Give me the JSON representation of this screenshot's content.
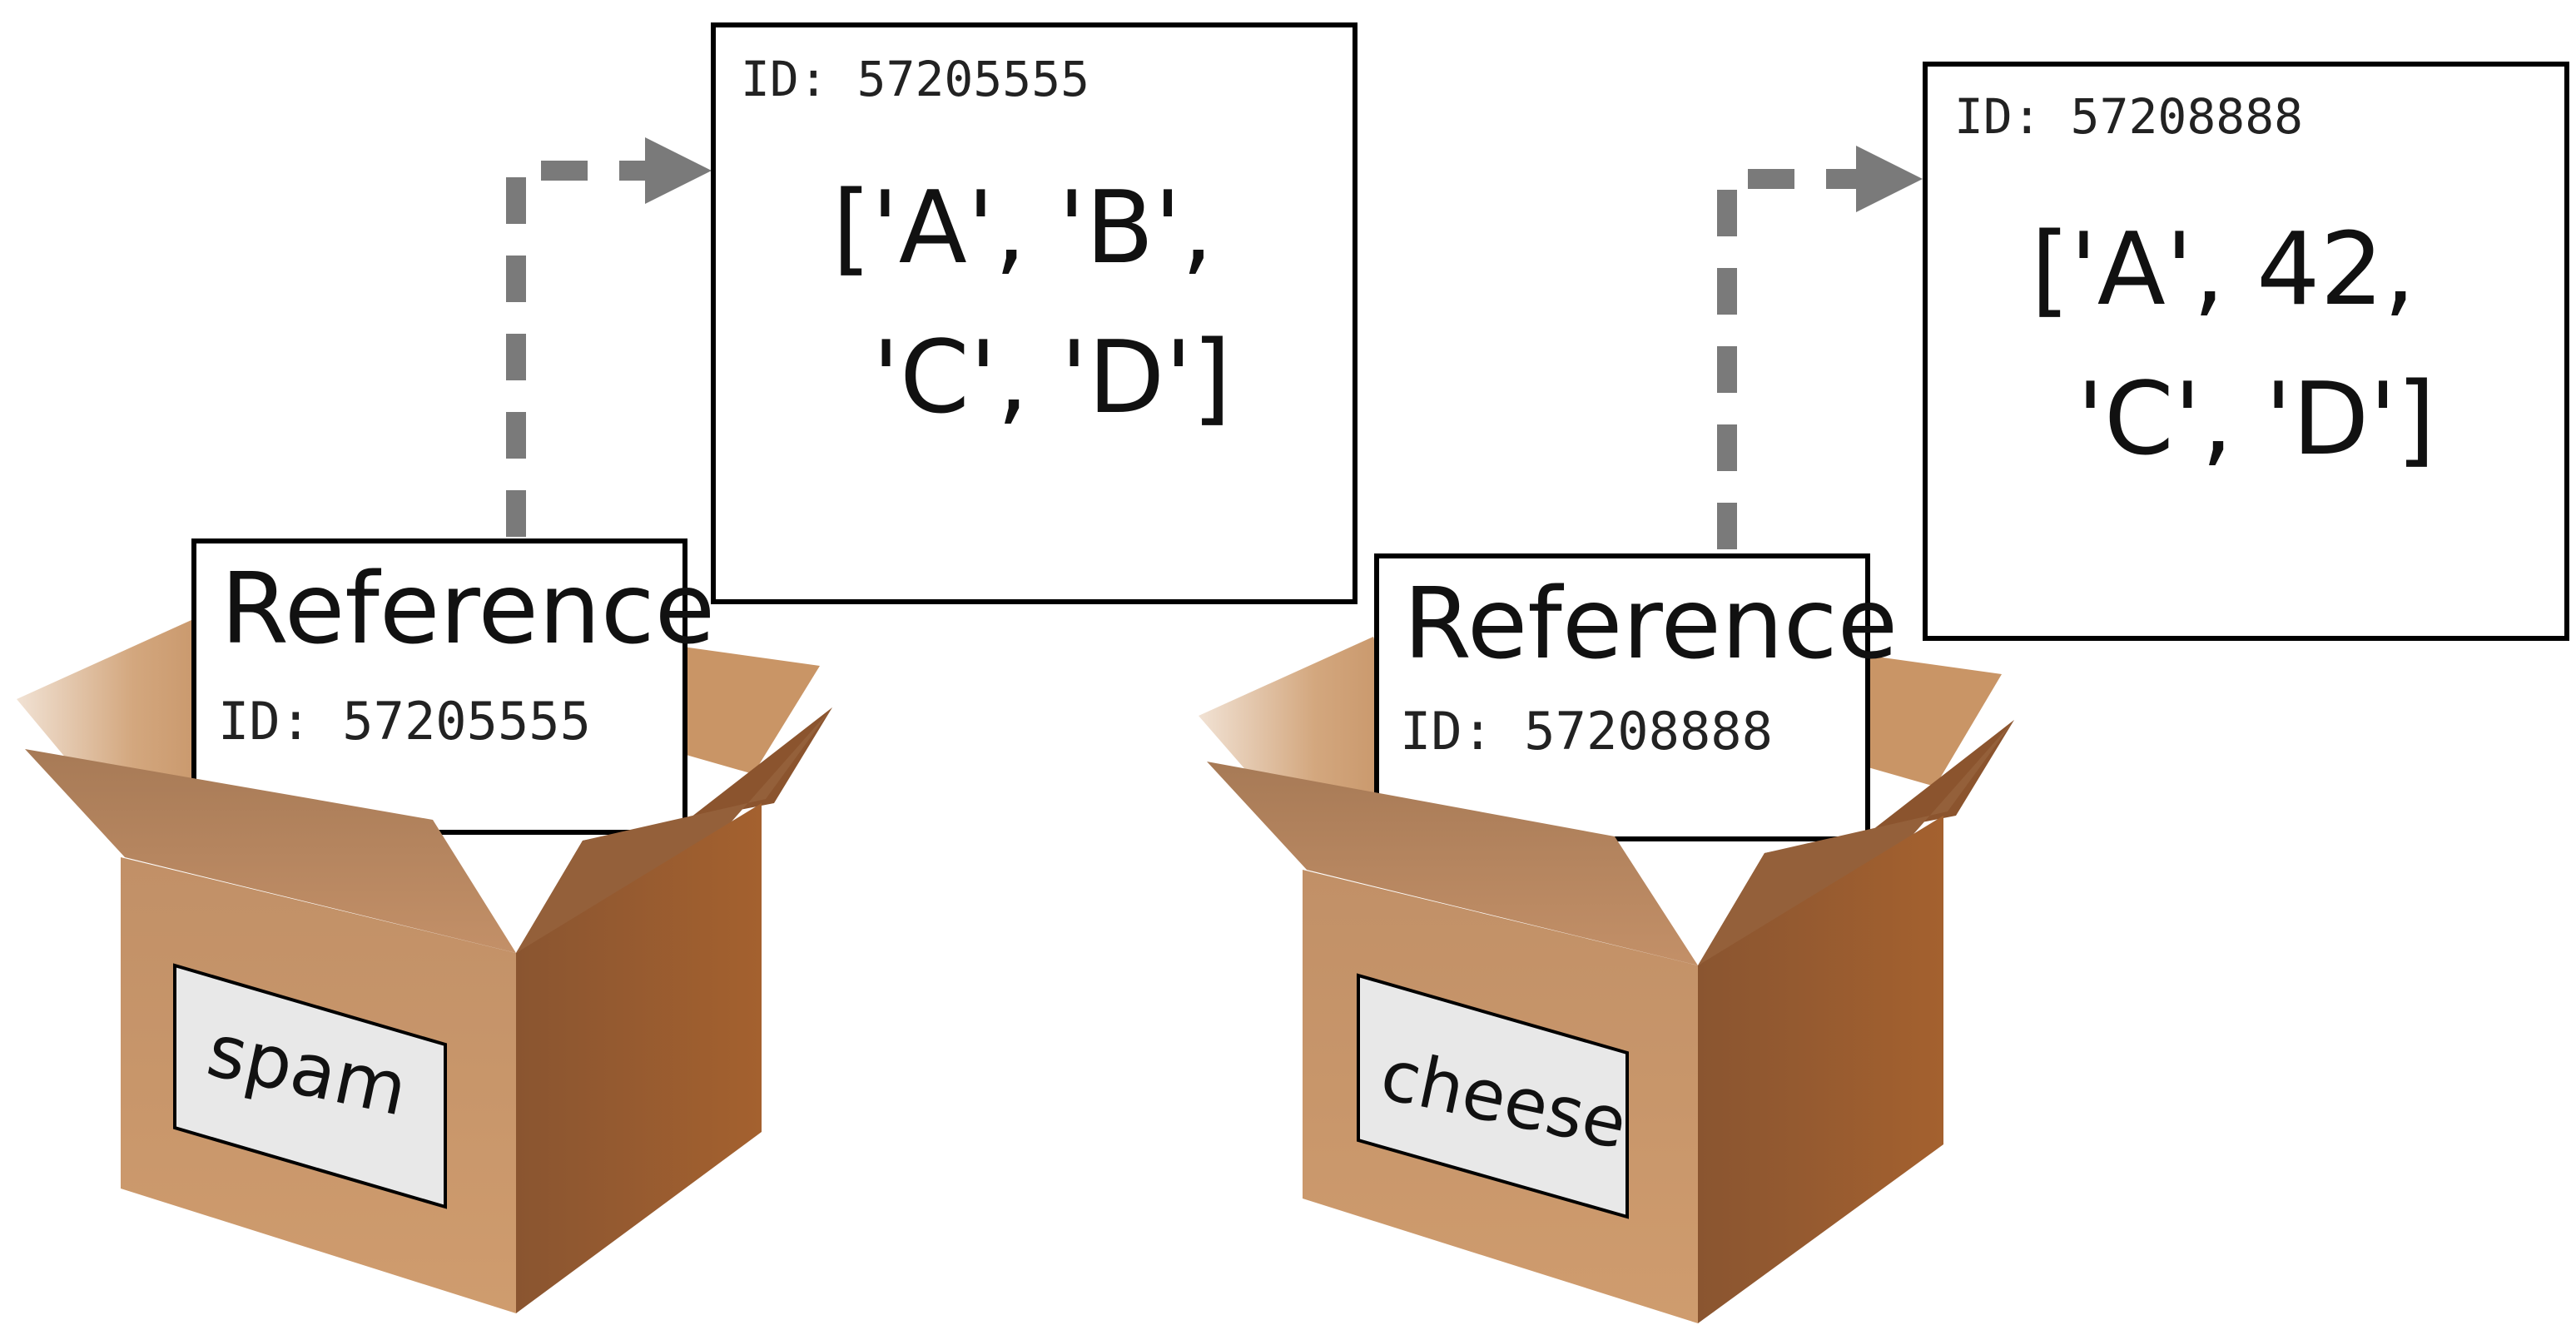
{
  "diagram": {
    "left": {
      "box_label": "spam",
      "reference": {
        "title": "Reference",
        "id_text": "ID: 57205555"
      },
      "object": {
        "id_text": "ID: 57205555",
        "value_line1": "['A', 'B',",
        "value_line2": "'C', 'D']"
      }
    },
    "right": {
      "box_label": "cheese",
      "reference": {
        "title": "Reference",
        "id_text": "ID: 57208888"
      },
      "object": {
        "id_text": "ID: 57208888",
        "value_line1": "['A', 42,",
        "value_line2": "'C', 'D']"
      }
    },
    "colors": {
      "box_front": "#c8915f",
      "box_side": "#9a5a2e",
      "box_flap": "#b98258",
      "arrow": "#7a7a7a"
    }
  }
}
